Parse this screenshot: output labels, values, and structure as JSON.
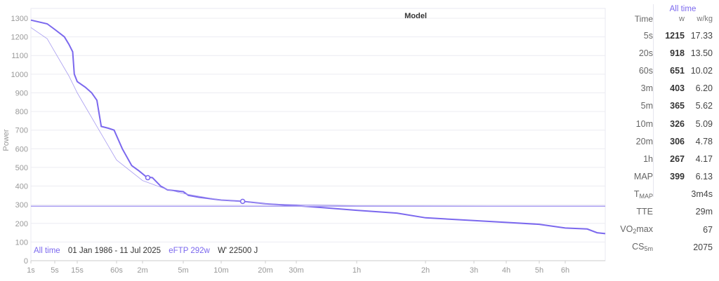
{
  "chart_data": {
    "type": "line",
    "title": "Model",
    "ylabel": "Power",
    "ylim": [
      0,
      1300
    ],
    "yticks": [
      0,
      100,
      200,
      300,
      400,
      500,
      600,
      700,
      800,
      900,
      1000,
      1100,
      1200,
      1300
    ],
    "xticks": [
      {
        "s": 1,
        "label": "1s"
      },
      {
        "s": 5,
        "label": "5s"
      },
      {
        "s": 15,
        "label": "15s"
      },
      {
        "s": 60,
        "label": "60s"
      },
      {
        "s": 120,
        "label": "2m"
      },
      {
        "s": 300,
        "label": "5m"
      },
      {
        "s": 600,
        "label": "10m"
      },
      {
        "s": 1200,
        "label": "20m"
      },
      {
        "s": 1800,
        "label": "30m"
      },
      {
        "s": 3600,
        "label": "1h"
      },
      {
        "s": 7200,
        "label": "2h"
      },
      {
        "s": 10800,
        "label": "3h"
      },
      {
        "s": 14400,
        "label": "4h"
      },
      {
        "s": 18000,
        "label": "5h"
      },
      {
        "s": 21600,
        "label": "6h"
      }
    ],
    "xlim": [
      1,
      30000
    ],
    "x_unit": "seconds",
    "grid": true,
    "series": [
      {
        "role": "power-curve",
        "color": "#7b68ee",
        "points": [
          [
            1,
            1290
          ],
          [
            3,
            1270
          ],
          [
            5,
            1240
          ],
          [
            8,
            1200
          ],
          [
            10,
            1160
          ],
          [
            12,
            1120
          ],
          [
            13,
            1000
          ],
          [
            15,
            960
          ],
          [
            20,
            930
          ],
          [
            25,
            900
          ],
          [
            30,
            860
          ],
          [
            35,
            720
          ],
          [
            45,
            710
          ],
          [
            55,
            700
          ],
          [
            70,
            600
          ],
          [
            90,
            510
          ],
          [
            110,
            480
          ],
          [
            130,
            450
          ],
          [
            150,
            445
          ],
          [
            180,
            400
          ],
          [
            210,
            380
          ],
          [
            300,
            370
          ],
          [
            330,
            350
          ],
          [
            400,
            340
          ],
          [
            600,
            325
          ],
          [
            840,
            318
          ],
          [
            1200,
            305
          ],
          [
            1800,
            295
          ],
          [
            2400,
            285
          ],
          [
            3600,
            270
          ],
          [
            5400,
            255
          ],
          [
            7200,
            230
          ],
          [
            10800,
            215
          ],
          [
            14400,
            205
          ],
          [
            18000,
            195
          ],
          [
            21600,
            175
          ],
          [
            25200,
            170
          ],
          [
            27000,
            150
          ],
          [
            30000,
            145
          ]
        ]
      },
      {
        "role": "model",
        "color": "#a89cf0",
        "points": [
          [
            1,
            1250
          ],
          [
            3,
            1190
          ],
          [
            5,
            1120
          ],
          [
            10,
            990
          ],
          [
            15,
            900
          ],
          [
            30,
            720
          ],
          [
            60,
            540
          ],
          [
            120,
            430
          ],
          [
            200,
            385
          ],
          [
            300,
            360
          ],
          [
            600,
            325
          ],
          [
            1200,
            305
          ],
          [
            1800,
            300
          ],
          [
            3600,
            295
          ],
          [
            30000,
            292
          ]
        ]
      },
      {
        "role": "eftp",
        "color": "#a89cf0",
        "points": [
          [
            1,
            292
          ],
          [
            30000,
            292
          ]
        ]
      }
    ],
    "markers": [
      [
        135,
        445
      ],
      [
        840,
        318
      ]
    ]
  },
  "legend": {
    "period": "All time",
    "dates": "01 Jan 1986 - 11 Jul 2025",
    "eftp": "eFTP 292w",
    "wprime": "W' 22500 J"
  },
  "table": {
    "period": "All time",
    "headers": {
      "time": "Time",
      "w": "w",
      "wkg": "w/kg"
    },
    "rows": [
      {
        "t": "5s",
        "w": "1215",
        "wkg": "17.33"
      },
      {
        "t": "20s",
        "w": "918",
        "wkg": "13.50"
      },
      {
        "t": "60s",
        "w": "651",
        "wkg": "10.02"
      },
      {
        "t": "3m",
        "w": "403",
        "wkg": "6.20"
      },
      {
        "t": "5m",
        "w": "365",
        "wkg": "5.62"
      },
      {
        "t": "10m",
        "w": "326",
        "wkg": "5.09"
      },
      {
        "t": "20m",
        "w": "306",
        "wkg": "4.78"
      },
      {
        "t": "1h",
        "w": "267",
        "wkg": "4.17"
      },
      {
        "t": "MAP",
        "w": "399",
        "wkg": "6.13"
      }
    ],
    "tmap": {
      "label": "T",
      "sub": "MAP",
      "value": "3m4s"
    },
    "tte": {
      "label": "TTE",
      "value": "29m"
    },
    "vo2": {
      "label": "VO",
      "sub": "2",
      "label2": "max",
      "value": "67"
    },
    "cs": {
      "label": "CS",
      "sub": "5m",
      "value": "2075"
    }
  }
}
